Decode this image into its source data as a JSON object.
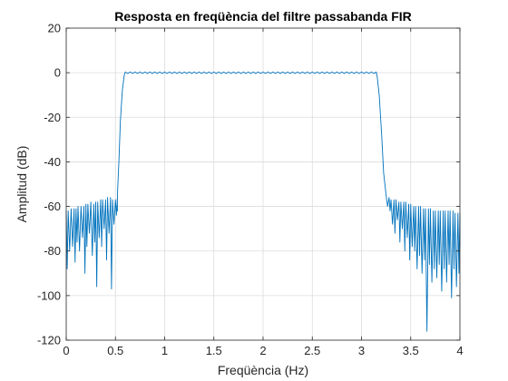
{
  "chart_data": {
    "type": "line",
    "title": "Resposta en freqüència del filtre passabanda FIR",
    "xlabel": "Freqüència (Hz)",
    "ylabel": "Amplitud (dB)",
    "xlim": [
      0,
      4
    ],
    "ylim": [
      -120,
      20
    ],
    "xticks": [
      0,
      0.5,
      1,
      1.5,
      2,
      2.5,
      3,
      3.5,
      4
    ],
    "xtick_labels": [
      "0",
      "0.5",
      "1",
      "1.5",
      "2",
      "2.5",
      "3",
      "3.5",
      "4"
    ],
    "yticks": [
      -120,
      -100,
      -80,
      -60,
      -40,
      -20,
      0,
      20
    ],
    "ytick_labels": [
      "-120",
      "-100",
      "-80",
      "-60",
      "-40",
      "-20",
      "0",
      "20"
    ],
    "grid": true,
    "line_color": "#0072bd",
    "passband": {
      "from_hz": 0.6,
      "to_hz": 3.15,
      "level_db": 0
    },
    "transition": {
      "lower": [
        0.52,
        0.6
      ],
      "upper": [
        3.15,
        3.25
      ]
    },
    "stopband_lower": {
      "x": [
        0.0,
        0.02,
        0.05,
        0.08,
        0.1,
        0.12,
        0.15,
        0.18,
        0.2,
        0.22,
        0.25,
        0.28,
        0.3,
        0.32,
        0.35,
        0.37,
        0.4,
        0.42,
        0.45,
        0.47,
        0.5,
        0.52
      ],
      "peak": [
        -62,
        -62,
        -61,
        -61,
        -61,
        -60,
        -60,
        -60,
        -59,
        -59,
        -58,
        -59,
        -58,
        -58,
        -57,
        -57,
        -57,
        -56,
        -56,
        -57,
        -57,
        -56
      ],
      "trough": [
        -88,
        -80,
        -78,
        -85,
        -76,
        -80,
        -74,
        -90,
        -78,
        -72,
        -82,
        -76,
        -96,
        -74,
        -78,
        -70,
        -84,
        -72,
        -97,
        -68,
        -64,
        -62
      ]
    },
    "stopband_upper": {
      "x": [
        3.25,
        3.28,
        3.3,
        3.33,
        3.35,
        3.38,
        3.4,
        3.43,
        3.45,
        3.48,
        3.5,
        3.53,
        3.55,
        3.58,
        3.6,
        3.63,
        3.65,
        3.68,
        3.7,
        3.73,
        3.75,
        3.78,
        3.8,
        3.83,
        3.85,
        3.88,
        3.9,
        3.93,
        3.95,
        3.98,
        4.0
      ],
      "peak": [
        -55,
        -56,
        -57,
        -57,
        -57,
        -58,
        -58,
        -58,
        -58,
        -59,
        -59,
        -60,
        -60,
        -60,
        -60,
        -61,
        -61,
        -61,
        -61,
        -62,
        -62,
        -62,
        -62,
        -62,
        -62,
        -62,
        -62,
        -62,
        -63,
        -63,
        -63
      ],
      "trough": [
        -60,
        -62,
        -68,
        -72,
        -66,
        -76,
        -70,
        -80,
        -74,
        -84,
        -78,
        -80,
        -88,
        -82,
        -90,
        -84,
        -116,
        -86,
        -94,
        -88,
        -92,
        -86,
        -98,
        -88,
        -94,
        -86,
        -101,
        -88,
        -96,
        -90,
        -78
      ]
    }
  }
}
